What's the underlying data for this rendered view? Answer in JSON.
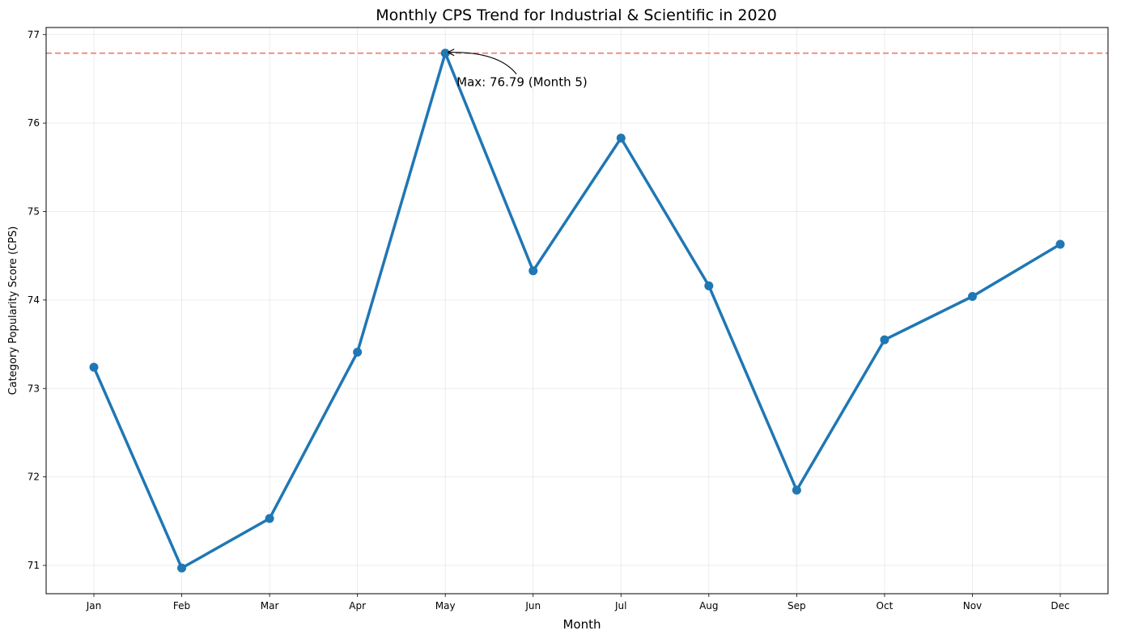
{
  "chart_data": {
    "type": "line",
    "title": "Monthly CPS Trend for Industrial & Scientific in 2020",
    "xlabel": "Month",
    "ylabel": "Category Popularity Score (CPS)",
    "categories": [
      "Jan",
      "Feb",
      "Mar",
      "Apr",
      "May",
      "Jun",
      "Jul",
      "Aug",
      "Sep",
      "Oct",
      "Nov",
      "Dec"
    ],
    "series": [
      {
        "values": [
          73.24,
          70.97,
          71.53,
          73.41,
          76.79,
          74.33,
          75.83,
          74.16,
          71.85,
          73.55,
          74.04,
          74.63
        ],
        "color": "#1f77b4"
      }
    ],
    "ylim": [
      70.68,
      77.08
    ],
    "yticks": [
      71,
      72,
      73,
      74,
      75,
      76,
      77
    ],
    "grid": true,
    "reference_line": {
      "y": 76.79,
      "color": "#f08080",
      "style": "dashed"
    },
    "annotation": {
      "text": "Max: 76.79 (Month 5)",
      "point_index": 4
    }
  }
}
